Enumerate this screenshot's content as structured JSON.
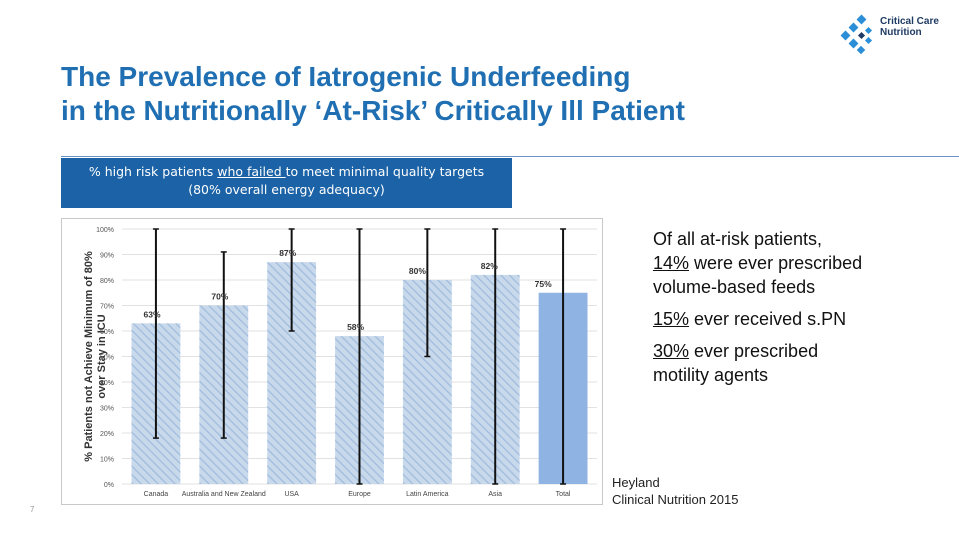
{
  "logo": {
    "line1": "Critical Care",
    "line2": "Nutrition"
  },
  "title": {
    "line1": "The Prevalence of Iatrogenic Underfeeding",
    "line2": "in the Nutritionally ‘At-Risk’ Critically Ill Patient"
  },
  "banner": {
    "prefix": "% high risk patients ",
    "underlined": "who failed ",
    "suffix": "to meet minimal quality targets",
    "line2": "(80% overall energy adequacy)"
  },
  "bullets": [
    {
      "underlined": "14%",
      "text": " were ever prescribed volume-based feeds",
      "lead": "Of all at-risk patients, "
    },
    {
      "underlined": "15%",
      "text": " ever received s.PN",
      "lead": ""
    },
    {
      "underlined": "30%",
      "text": " ever prescribed motility agents",
      "lead": ""
    }
  ],
  "reference": {
    "line1": "Heyland",
    "line2": "Clinical Nutrition 2015"
  },
  "page_number": "7",
  "colors": {
    "title": "#1f6fb2",
    "banner": "#1b62a6",
    "bar_hatch": "#aac3e0",
    "bar_total": "#8fb3e3"
  },
  "chart_data": {
    "type": "bar",
    "ylabel": "% Patients not Achieve Minimum of 80% over Stay in ICU",
    "ylim": [
      0,
      100
    ],
    "yticks": [
      "0%",
      "10%",
      "20%",
      "30%",
      "40%",
      "50%",
      "60%",
      "70%",
      "80%",
      "90%",
      "100%"
    ],
    "categories": [
      "Canada",
      "Australia and New Zealand",
      "USA",
      "Europe",
      "Latin America",
      "Asia",
      "Total"
    ],
    "values": [
      63,
      70,
      87,
      58,
      80,
      82,
      75
    ],
    "value_labels": [
      "63%",
      "70%",
      "87%",
      "58%",
      "80%",
      "82%",
      "75%"
    ],
    "error_bars": [
      [
        18,
        100
      ],
      [
        18,
        91
      ],
      [
        60,
        100
      ],
      [
        0,
        100
      ],
      [
        50,
        100
      ],
      [
        0,
        100
      ],
      [
        0,
        100
      ]
    ]
  }
}
